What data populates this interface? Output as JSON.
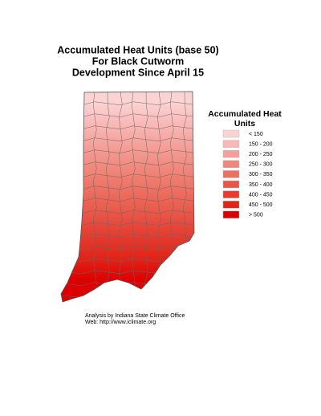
{
  "map": {
    "title_lines": [
      "Accumulated Heat Units (base 50)",
      "For Black Cutworm",
      "Development Since April 15"
    ],
    "legend": {
      "title_lines": [
        "Accumulated Heat",
        "Units"
      ],
      "items": [
        {
          "label": "< 150",
          "color": "#fbd3d3"
        },
        {
          "label": "150 - 200",
          "color": "#f8b8b6"
        },
        {
          "label": "200 - 250",
          "color": "#f49f98"
        },
        {
          "label": "250 - 300",
          "color": "#f0877b"
        },
        {
          "label": "300 - 350",
          "color": "#ec6f60"
        },
        {
          "label": "350 - 400",
          "color": "#e85648"
        },
        {
          "label": "400 - 450",
          "color": "#e43c30"
        },
        {
          "label": "450 - 500",
          "color": "#e02418"
        },
        {
          "label": "> 500",
          "color": "#dc0000"
        }
      ]
    },
    "footer_lines": [
      "Analysis by Indiana State Climate Office",
      "Web:   http://www.iclimate.org"
    ]
  }
}
